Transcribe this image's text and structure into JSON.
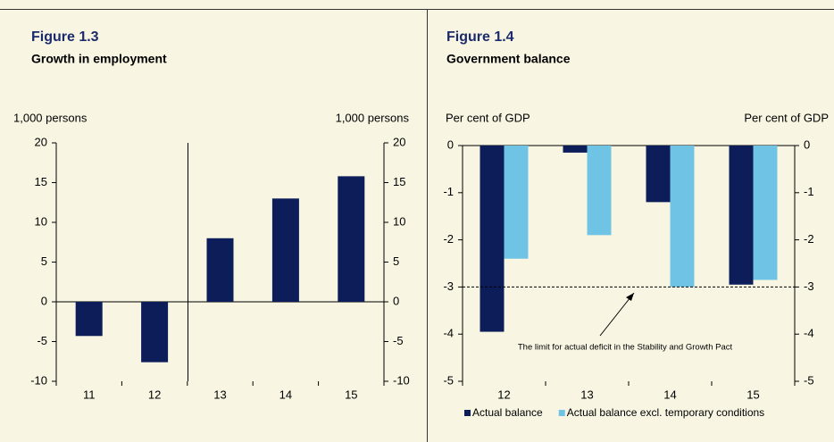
{
  "chart_data": [
    {
      "type": "bar",
      "title": "Figure 1.3",
      "subtitle": "Growth in employment",
      "ylabel": "1,000 persons",
      "categories": [
        "11",
        "12",
        "13",
        "14",
        "15"
      ],
      "series": [
        {
          "name": null,
          "color": "#0c1d5a",
          "values": [
            -4.3,
            -7.6,
            8,
            13,
            15.8
          ]
        }
      ],
      "ylim": [
        -10,
        20
      ],
      "yticks": [
        -10,
        -5,
        0,
        5,
        10,
        15,
        20
      ],
      "grid": false
    },
    {
      "type": "bar",
      "title": "Figure 1.4",
      "subtitle": "Government balance",
      "ylabel": "Per cent of GDP",
      "categories": [
        "12",
        "13",
        "14",
        "15"
      ],
      "series": [
        {
          "name": "Actual balance",
          "color": "#0c1d5a",
          "values": [
            -3.95,
            -0.15,
            -1.2,
            -2.95
          ]
        },
        {
          "name": "Actual balance excl. temporary conditions",
          "color": "#6fc4e6",
          "values": [
            -2.4,
            -1.9,
            -3.0,
            -2.85
          ]
        }
      ],
      "ylim": [
        -5,
        0
      ],
      "yticks": [
        -5,
        -4,
        -3,
        -2,
        -1,
        0
      ],
      "grid": false,
      "reference_line": {
        "value": -3,
        "label": "The limit for actual deficit in the Stability and Growth Pact"
      }
    }
  ]
}
